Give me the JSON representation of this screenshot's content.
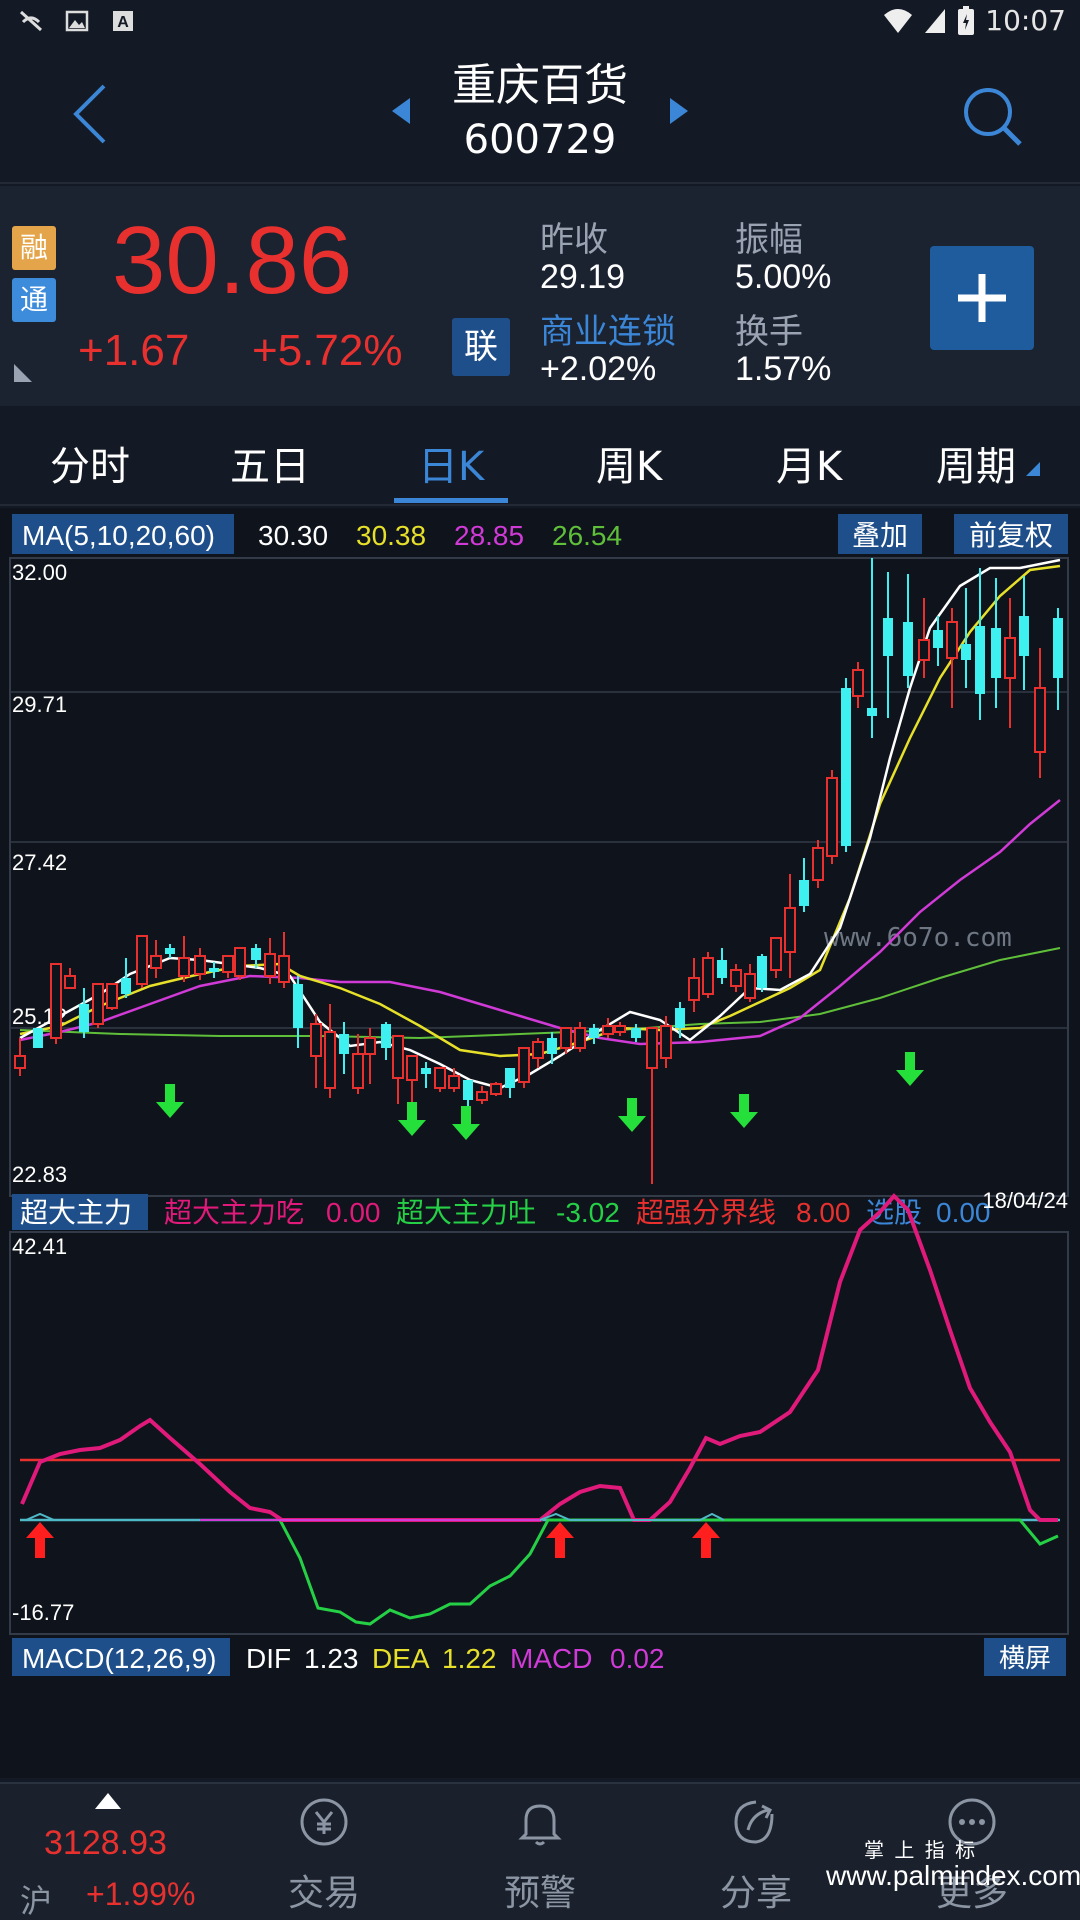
{
  "status": {
    "time": "10:07"
  },
  "header": {
    "name": "重庆百货",
    "code": "600729"
  },
  "quote": {
    "badges": [
      "融",
      "通"
    ],
    "price": "30.86",
    "change": "+1.67",
    "change_pct": "+5.72%",
    "lian": "联",
    "prev_close_label": "昨收",
    "prev_close": "29.19",
    "amplitude_label": "振幅",
    "amplitude": "5.00%",
    "sector_label": "商业连锁",
    "sector_pct": "+2.02%",
    "turnover_label": "换手",
    "turnover": "1.57%"
  },
  "tabs": [
    "分时",
    "五日",
    "日K",
    "周K",
    "月K",
    "周期"
  ],
  "ma": {
    "label": "MA(5,10,20,60)",
    "v5": "30.30",
    "v10": "30.38",
    "v20": "28.85",
    "v60": "26.54",
    "overlay_button": "叠加",
    "adjust_button": "前复权"
  },
  "kchart": {
    "y_labels": [
      "32.00",
      "29.71",
      "27.42",
      "25.12",
      "22.83"
    ],
    "watermark": "www.6o7o.com"
  },
  "indicator": {
    "label": "超大主力",
    "s1_label": "超大主力吃",
    "s1_val": "0.00",
    "s2_label": "超大主力吐",
    "s2_val": "-3.02",
    "s3_label": "超强分界线",
    "s3_val": "8.00",
    "s4_label": "选股",
    "s4_val": "0.00",
    "date": "18/04/24",
    "y_top": "42.41",
    "y_bottom": "-16.77"
  },
  "macd": {
    "label": "MACD(12,26,9)",
    "dif_label": "DIF",
    "dif": "1.23",
    "dea_label": "DEA",
    "dea": "1.22",
    "macd_label": "MACD",
    "macd": "0.02",
    "landscape_button": "横屏"
  },
  "bottom_nav": {
    "index_value": "3128.93",
    "index_name": "沪",
    "index_pct": "+1.99%",
    "trade": "交易",
    "alert": "预警",
    "share": "分享",
    "more": "更多"
  },
  "footer_watermark": {
    "line1": "掌 上 指 标",
    "line2": "www.palmindex.com"
  },
  "colors": {
    "up": "#e8312f",
    "down": "#3ff0f0",
    "accent": "#3b86d6",
    "ma5": "#ffffff",
    "ma10": "#e6e02a",
    "ma20": "#d03ad6",
    "ma60": "#5fbf3a"
  }
}
